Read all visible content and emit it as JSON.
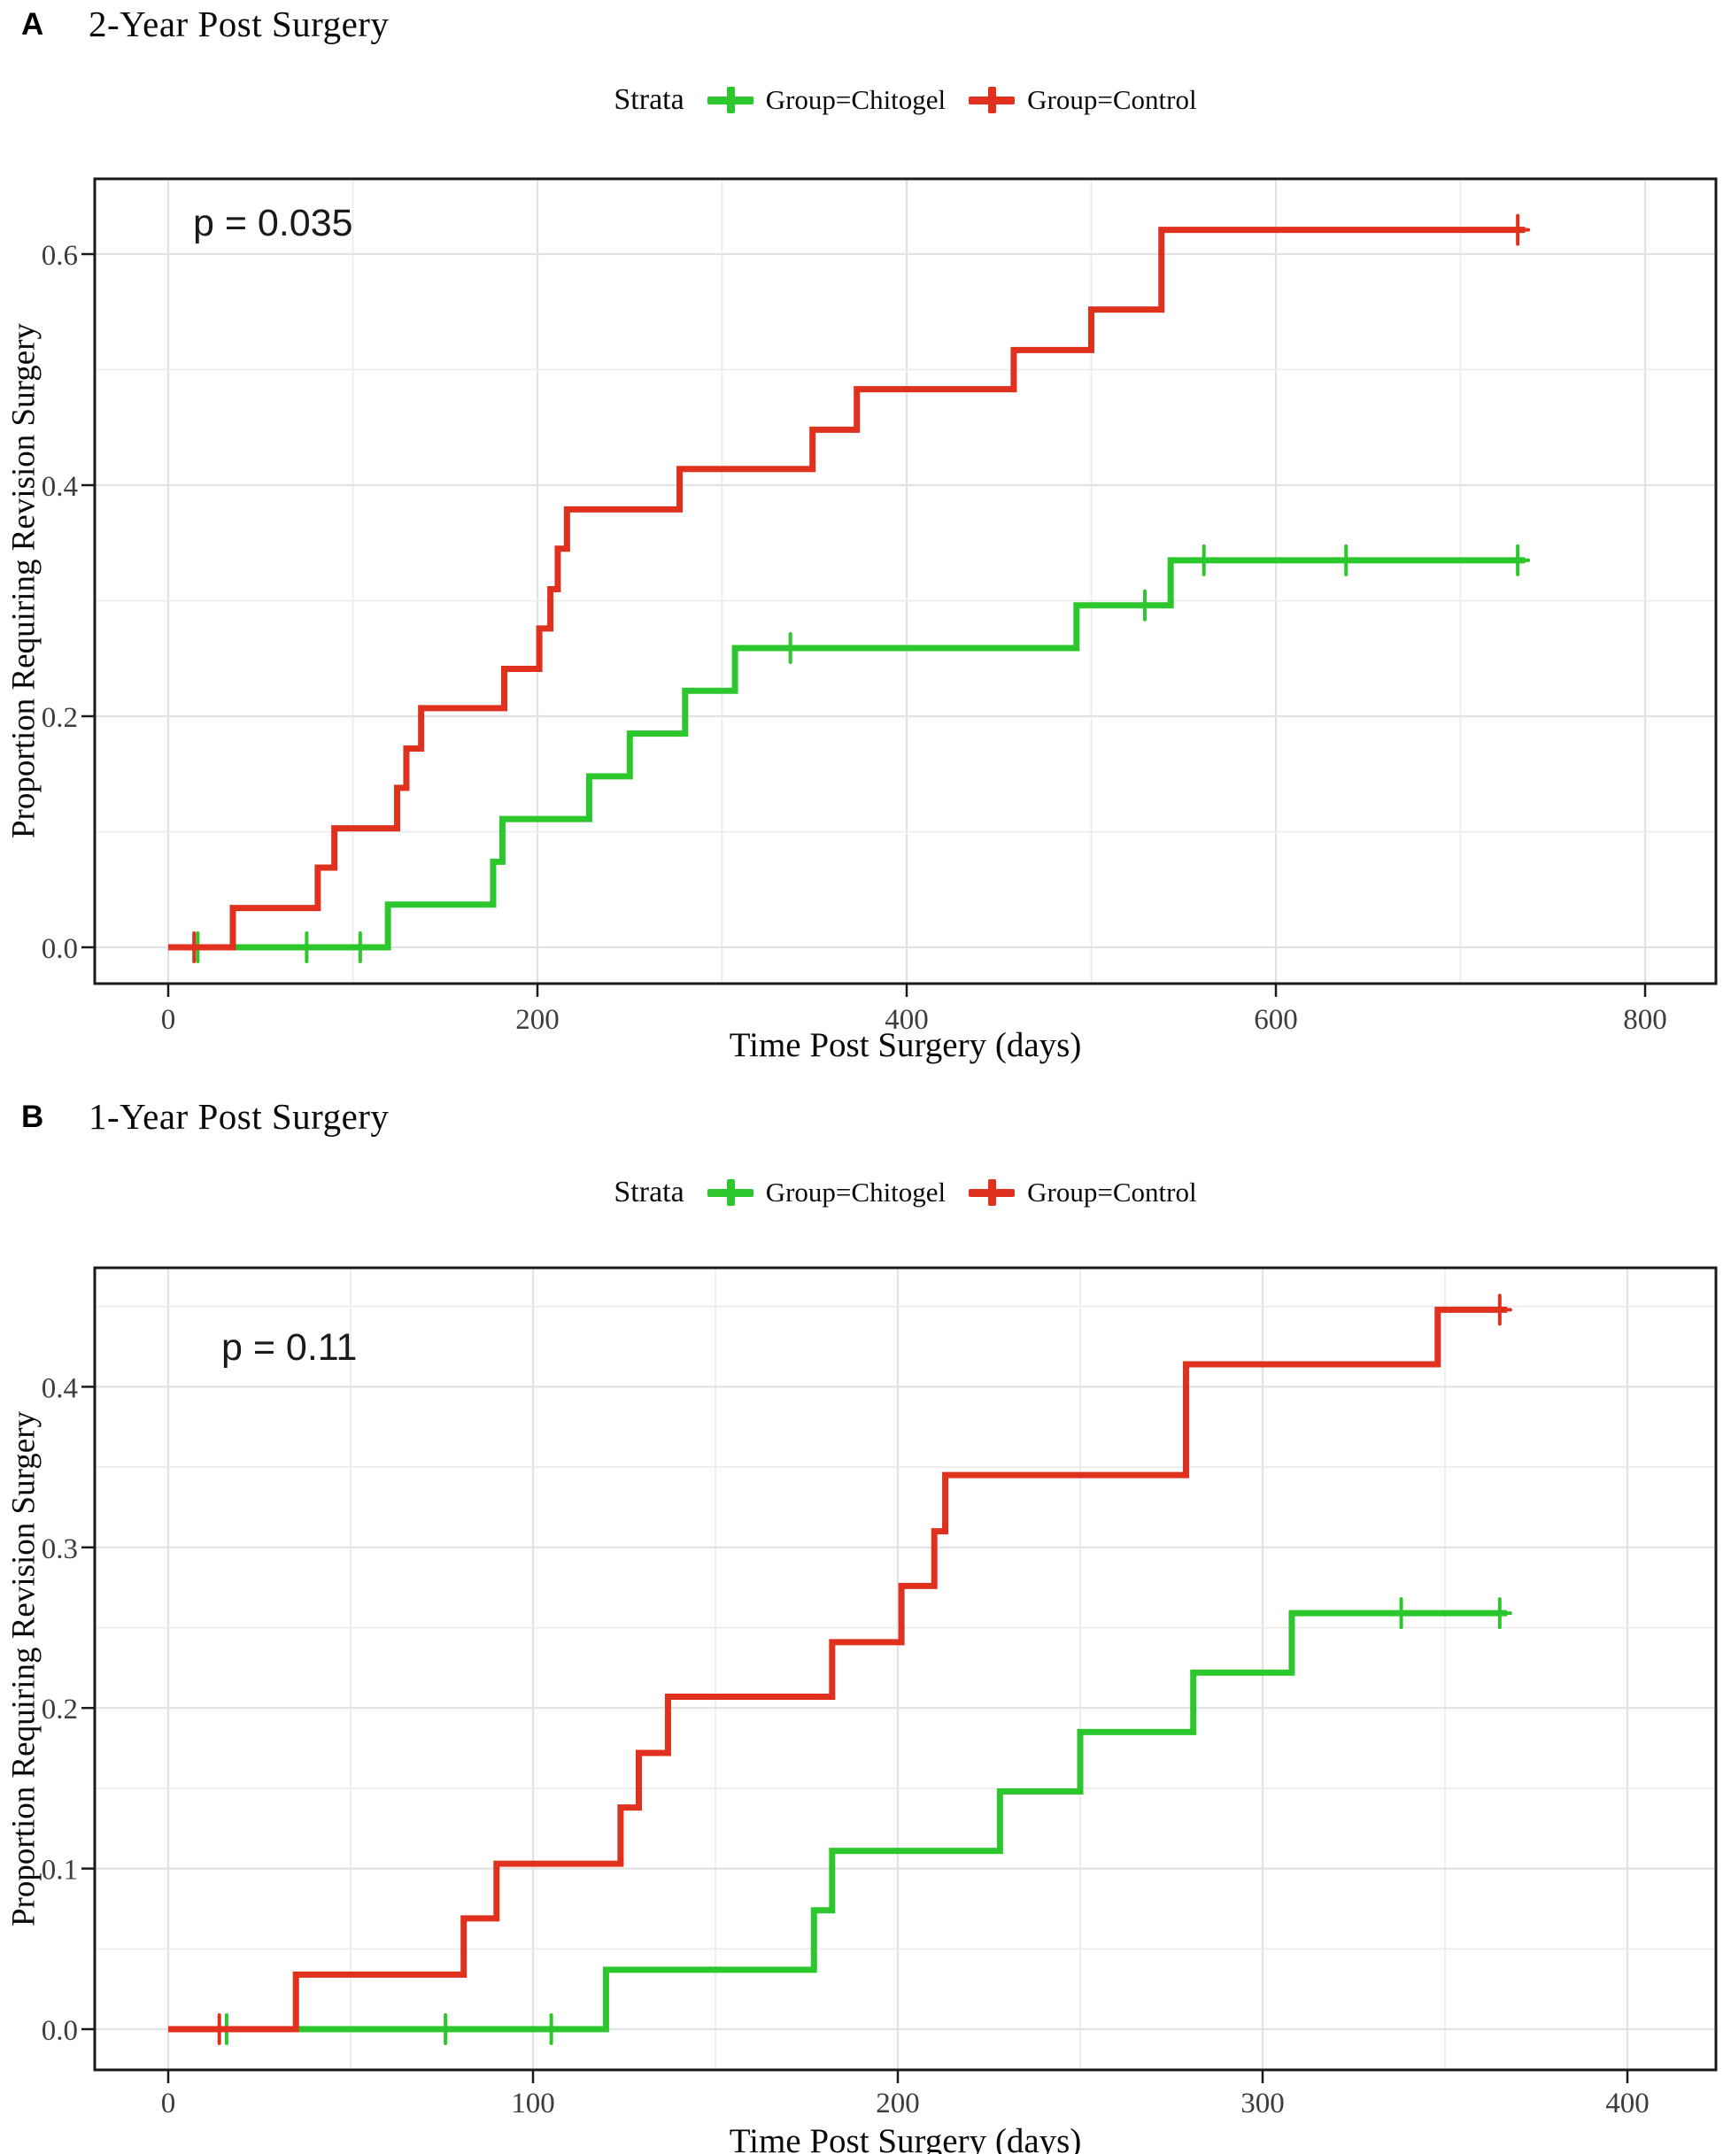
{
  "chart_data": [
    {
      "type": "line",
      "subtype": "kaplan-meier-step-curves",
      "panel_label": "A",
      "title": "2-Year Post Surgery",
      "legend_title": "Strata",
      "legend_position": "top",
      "p_value": "p = 0.035",
      "xlabel": "Time Post Surgery (days)",
      "ylabel": "Proportion Requiring Revision Surgery",
      "xlim": [
        0,
        800
      ],
      "ylim": [
        0,
        0.6
      ],
      "grid": true,
      "x_major_ticks": [
        0,
        200,
        400,
        600,
        800
      ],
      "x_tick_labels": [
        "0",
        "200",
        "400",
        "600",
        "800"
      ],
      "x_grid_every": 100,
      "y_major_ticks": [
        0,
        0.2,
        0.4,
        0.6
      ],
      "y_tick_labels": [
        "0.0",
        "0.2",
        "0.4",
        "0.6"
      ],
      "y_grid_every": 0.1,
      "series": [
        {
          "key": "chitogel",
          "name": "Group=Chitogel",
          "color": "#2cc72c",
          "step_points": [
            [
              0,
              0
            ],
            [
              119,
              0.037
            ],
            [
              176,
              0.074
            ],
            [
              181,
              0.111
            ],
            [
              228,
              0.148
            ],
            [
              250,
              0.185
            ],
            [
              280,
              0.222
            ],
            [
              307,
              0.259
            ],
            [
              492,
              0.296
            ],
            [
              543,
              0.335
            ],
            [
              735,
              0.335
            ]
          ],
          "censor_marks": [
            [
              16,
              0
            ],
            [
              75,
              0
            ],
            [
              104,
              0
            ],
            [
              337,
              0.259
            ],
            [
              529,
              0.296
            ],
            [
              561,
              0.335
            ],
            [
              638,
              0.335
            ],
            [
              731,
              0.335
            ]
          ]
        },
        {
          "key": "control",
          "name": "Group=Control",
          "color": "#e0301e",
          "step_points": [
            [
              0,
              0
            ],
            [
              35,
              0.034
            ],
            [
              81,
              0.069
            ],
            [
              90,
              0.103
            ],
            [
              124,
              0.138
            ],
            [
              129,
              0.172
            ],
            [
              137,
              0.207
            ],
            [
              182,
              0.241
            ],
            [
              201,
              0.276
            ],
            [
              207,
              0.31
            ],
            [
              211,
              0.345
            ],
            [
              216,
              0.379
            ],
            [
              277,
              0.414
            ],
            [
              349,
              0.448
            ],
            [
              373,
              0.483
            ],
            [
              458,
              0.517
            ],
            [
              500,
              0.552
            ],
            [
              538,
              0.621
            ],
            [
              735,
              0.621
            ]
          ],
          "censor_marks": [
            [
              14,
              0
            ],
            [
              731,
              0.621
            ]
          ]
        }
      ]
    },
    {
      "type": "line",
      "subtype": "kaplan-meier-step-curves",
      "panel_label": "B",
      "title": "1-Year Post Surgery",
      "legend_title": "Strata",
      "legend_position": "top",
      "p_value": "p = 0.11",
      "xlabel": "Time Post Surgery (days)",
      "ylabel": "Proportion Requiring Revision Surgery",
      "xlim": [
        0,
        400
      ],
      "ylim": [
        0,
        0.45
      ],
      "grid": true,
      "x_major_ticks": [
        0,
        100,
        200,
        300,
        400
      ],
      "x_tick_labels": [
        "0",
        "100",
        "200",
        "300",
        "400"
      ],
      "x_grid_every": 50,
      "y_major_ticks": [
        0,
        0.1,
        0.2,
        0.3,
        0.4
      ],
      "y_tick_labels": [
        "0.0",
        "0.1",
        "0.2",
        "0.3",
        "0.4"
      ],
      "y_grid_every": 0.05,
      "series": [
        {
          "key": "chitogel",
          "name": "Group=Chitogel",
          "color": "#2cc72c",
          "step_points": [
            [
              0,
              0
            ],
            [
              120,
              0.037
            ],
            [
              177,
              0.074
            ],
            [
              182,
              0.111
            ],
            [
              228,
              0.148
            ],
            [
              250,
              0.185
            ],
            [
              281,
              0.222
            ],
            [
              308,
              0.259
            ],
            [
              367,
              0.259
            ]
          ],
          "censor_marks": [
            [
              16,
              0
            ],
            [
              76,
              0
            ],
            [
              105,
              0
            ],
            [
              338,
              0.259
            ],
            [
              365,
              0.259
            ]
          ]
        },
        {
          "key": "control",
          "name": "Group=Control",
          "color": "#e0301e",
          "step_points": [
            [
              0,
              0
            ],
            [
              35,
              0.034
            ],
            [
              81,
              0.069
            ],
            [
              90,
              0.103
            ],
            [
              124,
              0.138
            ],
            [
              129,
              0.172
            ],
            [
              137,
              0.207
            ],
            [
              182,
              0.241
            ],
            [
              201,
              0.276
            ],
            [
              210,
              0.31
            ],
            [
              213,
              0.345
            ],
            [
              279,
              0.414
            ],
            [
              348,
              0.448
            ],
            [
              367,
              0.448
            ]
          ],
          "censor_marks": [
            [
              14,
              0
            ],
            [
              365,
              0.448
            ]
          ]
        }
      ]
    }
  ]
}
